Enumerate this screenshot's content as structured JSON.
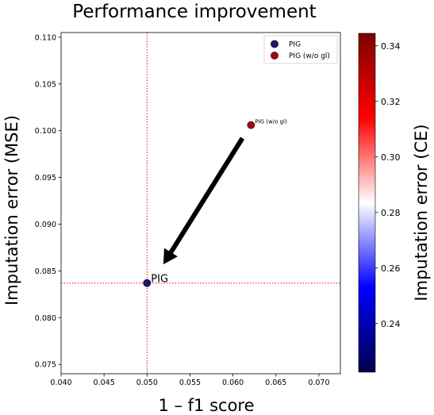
{
  "chart_data": {
    "type": "scatter",
    "title": "Performance improvement",
    "xlabel": "1 – f1 score",
    "ylabel": "Imputation error (MSE)",
    "xlim": [
      0.04,
      0.0725
    ],
    "ylim": [
      0.074,
      0.1105
    ],
    "x_ticks": [
      "0.040",
      "0.045",
      "0.050",
      "0.055",
      "0.060",
      "0.065",
      "0.070"
    ],
    "y_ticks": [
      "0.075",
      "0.080",
      "0.085",
      "0.090",
      "0.095",
      "0.100",
      "0.105",
      "0.110"
    ],
    "grid": false,
    "legend_position": "top-right",
    "series": [
      {
        "name": "PIG",
        "x": 0.05,
        "y": 0.0837,
        "color": "#1a1a5e",
        "annotation": "PIG"
      },
      {
        "name": "PIG (w/o gl)",
        "x": 0.0621,
        "y": 0.1006,
        "color": "#8b1010",
        "annotation": "PIG (w/o gl)"
      }
    ],
    "reference_lines": {
      "vertical_x": 0.05,
      "horizontal_y": 0.0837,
      "color": "#ff0000",
      "style": "dotted"
    },
    "arrow": {
      "from": [
        0.0611,
        0.0992
      ],
      "to": [
        0.0519,
        0.0857
      ],
      "color": "#000000"
    },
    "colorbar": {
      "label": "Imputation error (CE)",
      "min": 0.2225,
      "max": 0.3445,
      "ticks": [
        "0.24",
        "0.26",
        "0.28",
        "0.30",
        "0.32",
        "0.34"
      ],
      "colormap": "seismic"
    }
  }
}
